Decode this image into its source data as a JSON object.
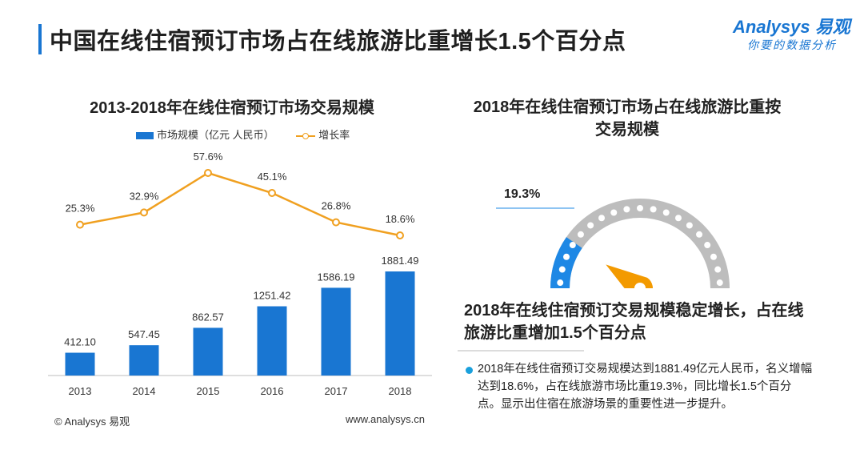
{
  "header": {
    "title": "中国在线住宿预订市场占在线旅游比重增长1.5个百分点",
    "brand_name": "Analysys 易观",
    "brand_slogan": "你要的数据分析"
  },
  "colors": {
    "bar": "#1976d2",
    "line": "#f0a020",
    "gauge_fill": "#1e88e5",
    "gauge_track": "#bdbdbd",
    "pointer": "#f39a00",
    "bullet": "#1aa0dc"
  },
  "chart_data": [
    {
      "type": "bar",
      "title": "2013-2018年在线住宿预订市场交易规模",
      "categories": [
        "2013",
        "2014",
        "2015",
        "2016",
        "2017",
        "2018"
      ],
      "series": [
        {
          "name": "市场规模（亿元 人民币）",
          "type": "bar",
          "values": [
            412.1,
            547.45,
            862.57,
            1251.42,
            1586.19,
            1881.49
          ],
          "labels": [
            "412.10",
            "547.45",
            "862.57",
            "1251.42",
            "1586.19",
            "1881.49"
          ]
        },
        {
          "name": "增长率",
          "type": "line",
          "values": [
            25.3,
            32.9,
            57.6,
            45.1,
            26.8,
            18.6
          ],
          "labels": [
            "25.3%",
            "32.9%",
            "57.6%",
            "45.1%",
            "26.8%",
            "18.6%"
          ]
        }
      ],
      "legend": "top-center",
      "grid": false
    },
    {
      "type": "gauge",
      "title": "2018年在线住宿预订市场占在线旅游比重按交易规模",
      "value": 19.3,
      "value_label": "19.3%",
      "max": 100
    }
  ],
  "summary": {
    "title": "2018年在线住宿预订交易规模稳定增长，占在线旅游比重增加1.5个百分点",
    "text": "2018年在线住宿预订交易规模达到1881.49亿元人民币，名义增幅达到18.6%，占在线旅游市场比重19.3%，同比增长1.5个百分点。显示出住宿在旅游场景的重要性进一步提升。"
  },
  "footer": {
    "copyright": "© Analysys 易观",
    "url": "www.analysys.cn"
  }
}
